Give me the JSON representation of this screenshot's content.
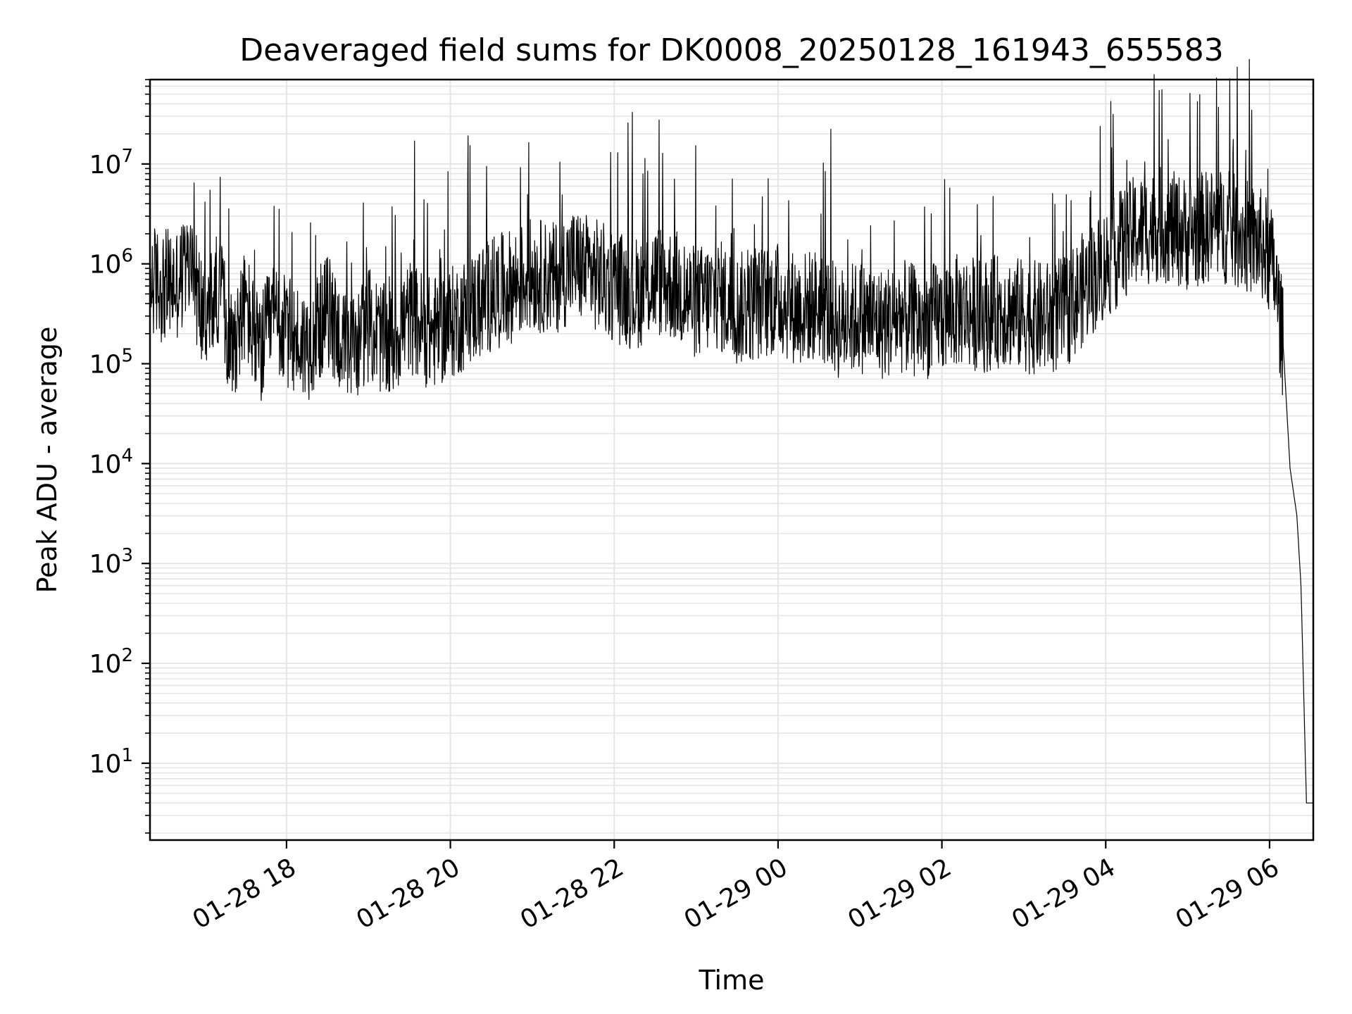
{
  "chart_data": {
    "type": "line",
    "title": "Deaveraged field sums for DK0008_20250128_161943_655583",
    "xlabel": "Time",
    "ylabel": "Peak ADU - average",
    "yscale": "log",
    "grid": true,
    "grid_color": "#e5e5e5",
    "line_color": "#000000",
    "xlim": [
      "2025-01-28 16:20",
      "2025-01-29 06:32"
    ],
    "ylim": [
      1.7,
      70000000
    ],
    "x_tick_labels": [
      {
        "at": "2025-01-28 18:00",
        "label": "01-28 18"
      },
      {
        "at": "2025-01-28 20:00",
        "label": "01-28 20"
      },
      {
        "at": "2025-01-28 22:00",
        "label": "01-28 22"
      },
      {
        "at": "2025-01-29 00:00",
        "label": "01-29 00"
      },
      {
        "at": "2025-01-29 02:00",
        "label": "01-29 02"
      },
      {
        "at": "2025-01-29 04:00",
        "label": "01-29 04"
      },
      {
        "at": "2025-01-29 06:00",
        "label": "01-29 06"
      }
    ],
    "y_tick_labels": [
      {
        "value": 10,
        "base": "10",
        "exp": "1"
      },
      {
        "value": 100,
        "base": "10",
        "exp": "2"
      },
      {
        "value": 1000,
        "base": "10",
        "exp": "3"
      },
      {
        "value": 10000,
        "base": "10",
        "exp": "4"
      },
      {
        "value": 100000,
        "base": "10",
        "exp": "5"
      },
      {
        "value": 1000000,
        "base": "10",
        "exp": "6"
      },
      {
        "value": 10000000,
        "base": "10",
        "exp": "7"
      }
    ],
    "series": [
      {
        "points": [
          [
            "2025-01-28 16:20",
            700000
          ],
          [
            "2025-01-28 16:30",
            600000
          ],
          [
            "2025-01-28 16:40",
            650000
          ],
          [
            "2025-01-28 16:50",
            1000000
          ],
          [
            "2025-01-28 17:00",
            250000
          ],
          [
            "2025-01-28 17:10",
            600000
          ],
          [
            "2025-01-28 17:20",
            150000
          ],
          [
            "2025-01-28 17:30",
            400000
          ],
          [
            "2025-01-28 17:40",
            120000
          ],
          [
            "2025-01-28 17:50",
            300000
          ],
          [
            "2025-01-28 18:00",
            200000
          ],
          [
            "2025-01-28 18:15",
            150000
          ],
          [
            "2025-01-28 18:30",
            350000
          ],
          [
            "2025-01-28 18:45",
            120000
          ],
          [
            "2025-01-28 19:00",
            250000
          ],
          [
            "2025-01-28 19:15",
            150000
          ],
          [
            "2025-01-28 19:30",
            300000
          ],
          [
            "2025-01-28 19:45",
            200000
          ],
          [
            "2025-01-28 20:00",
            250000
          ],
          [
            "2025-01-28 20:15",
            350000
          ],
          [
            "2025-01-28 20:30",
            500000
          ],
          [
            "2025-01-28 20:45",
            600000
          ],
          [
            "2025-01-28 21:00",
            800000
          ],
          [
            "2025-01-28 21:15",
            700000
          ],
          [
            "2025-01-28 21:30",
            1000000
          ],
          [
            "2025-01-28 21:45",
            800000
          ],
          [
            "2025-01-28 22:00",
            600000
          ],
          [
            "2025-01-28 22:15",
            500000
          ],
          [
            "2025-01-28 22:30",
            700000
          ],
          [
            "2025-01-28 22:45",
            600000
          ],
          [
            "2025-01-28 23:00",
            400000
          ],
          [
            "2025-01-28 23:15",
            500000
          ],
          [
            "2025-01-28 23:30",
            350000
          ],
          [
            "2025-01-28 23:45",
            400000
          ],
          [
            "2025-01-29 00:00",
            450000
          ],
          [
            "2025-01-29 00:15",
            350000
          ],
          [
            "2025-01-29 00:30",
            400000
          ],
          [
            "2025-01-29 00:45",
            250000
          ],
          [
            "2025-01-29 01:00",
            300000
          ],
          [
            "2025-01-29 01:15",
            250000
          ],
          [
            "2025-01-29 01:30",
            300000
          ],
          [
            "2025-01-29 01:45",
            250000
          ],
          [
            "2025-01-29 02:00",
            300000
          ],
          [
            "2025-01-29 02:15",
            350000
          ],
          [
            "2025-01-29 02:30",
            300000
          ],
          [
            "2025-01-29 02:45",
            350000
          ],
          [
            "2025-01-29 03:00",
            300000
          ],
          [
            "2025-01-29 03:15",
            280000
          ],
          [
            "2025-01-29 03:30",
            320000
          ],
          [
            "2025-01-29 03:45",
            600000
          ],
          [
            "2025-01-29 04:00",
            1000000
          ],
          [
            "2025-01-29 04:20",
            2000000
          ],
          [
            "2025-01-29 04:40",
            2500000
          ],
          [
            "2025-01-29 05:00",
            2000000
          ],
          [
            "2025-01-29 05:20",
            2500000
          ],
          [
            "2025-01-29 05:40",
            2000000
          ],
          [
            "2025-01-29 05:55",
            1500000
          ],
          [
            "2025-01-29 06:03",
            900000
          ],
          [
            "2025-01-29 06:10",
            150000
          ],
          [
            "2025-01-29 06:15",
            9000
          ],
          [
            "2025-01-29 06:20",
            3000
          ],
          [
            "2025-01-29 06:23",
            600
          ],
          [
            "2025-01-29 06:25",
            50
          ],
          [
            "2025-01-29 06:27",
            4
          ],
          [
            "2025-01-29 06:32",
            4
          ]
        ]
      }
    ]
  }
}
